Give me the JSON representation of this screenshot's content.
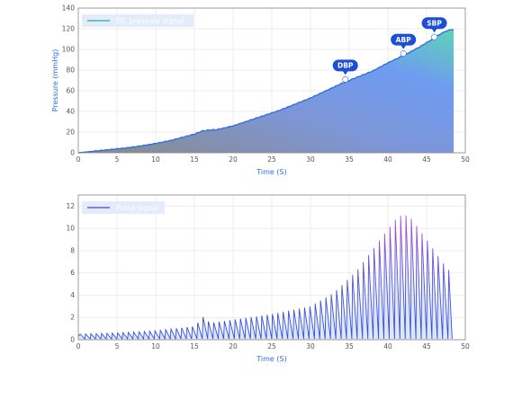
{
  "chart_data": [
    {
      "type": "area",
      "xlabel": "Time (S)",
      "ylabel": "Pressure (mmHg)",
      "xlim": [
        0,
        50
      ],
      "ylim": [
        0,
        140
      ],
      "x_ticks": [
        0,
        5,
        10,
        15,
        20,
        25,
        30,
        35,
        40,
        45,
        50
      ],
      "y_ticks": [
        0,
        20,
        40,
        60,
        80,
        100,
        120,
        140
      ],
      "legend": {
        "position": "top-left",
        "label": "DC pressure signal"
      },
      "series": [
        {
          "name": "DC pressure signal",
          "color": "#2f6fe0",
          "x": [
            0,
            2,
            4,
            6,
            8,
            10,
            12,
            14,
            15,
            16,
            17,
            18,
            20,
            22,
            24,
            26,
            28,
            30,
            32,
            34,
            35,
            36,
            38,
            40,
            42,
            44,
            46,
            47,
            48,
            48.5
          ],
          "y": [
            0,
            1.5,
            3,
            4.5,
            6.5,
            9,
            12,
            16,
            18,
            21,
            22,
            22.5,
            26,
            31,
            36,
            41,
            47,
            53,
            60,
            67,
            70,
            73,
            79,
            87,
            94,
            102,
            111,
            116,
            119,
            119
          ]
        }
      ],
      "annotations": [
        {
          "label": "DBP",
          "x": 34.5,
          "y": 71
        },
        {
          "label": "ABP",
          "x": 42,
          "y": 96
        },
        {
          "label": "SBP",
          "x": 46,
          "y": 112
        }
      ],
      "fill_colors": [
        "#8a8a8a",
        "#6f9bf0",
        "#5fd3b8"
      ]
    },
    {
      "type": "line",
      "xlabel": "Time (S)",
      "ylabel": "",
      "xlim": [
        0,
        50
      ],
      "ylim": [
        0,
        13
      ],
      "x_ticks": [
        0,
        5,
        10,
        15,
        20,
        25,
        30,
        35,
        40,
        45,
        50
      ],
      "y_ticks": [
        0,
        2,
        4,
        6,
        8,
        10,
        12
      ],
      "legend": {
        "position": "top-left",
        "label": "Pulse signal"
      },
      "series": [
        {
          "name": "Pulse signal",
          "color_low": "#2f4fe0",
          "color_high": "#a050d0",
          "beat_interval_s": 0.69,
          "duration_s": 48.3,
          "peak_envelope": [
            {
              "t": 0,
              "a": 0.5
            },
            {
              "t": 5,
              "a": 0.6
            },
            {
              "t": 10,
              "a": 0.8
            },
            {
              "t": 15,
              "a": 1.2
            },
            {
              "t": 16.2,
              "a": 2.1
            },
            {
              "t": 17,
              "a": 1.5
            },
            {
              "t": 20,
              "a": 1.8
            },
            {
              "t": 25,
              "a": 2.3
            },
            {
              "t": 30,
              "a": 3.0
            },
            {
              "t": 33,
              "a": 4.2
            },
            {
              "t": 36,
              "a": 6.2
            },
            {
              "t": 39,
              "a": 9.0
            },
            {
              "t": 41,
              "a": 10.8
            },
            {
              "t": 42,
              "a": 11.3
            },
            {
              "t": 43,
              "a": 10.9
            },
            {
              "t": 45,
              "a": 9.0
            },
            {
              "t": 47,
              "a": 7.0
            },
            {
              "t": 48.3,
              "a": 5.9
            }
          ]
        }
      ]
    }
  ]
}
